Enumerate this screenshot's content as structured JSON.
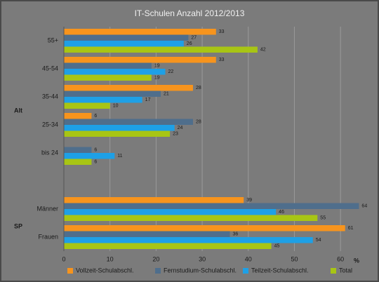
{
  "chart_data": {
    "type": "hbar",
    "title": "IT-Schulen Anzahl 2012/2013",
    "categories": [
      "55+",
      "45-54",
      "35-44",
      "25-34",
      "bis 24",
      null,
      "Männer",
      "Frauen"
    ],
    "group_labels": [
      "Alt",
      "SP"
    ],
    "series": [
      {
        "name": "Vollzeit-Schulabschl.",
        "color": "#f7941d",
        "values": [
          33,
          33,
          28,
          6,
          null,
          null,
          39,
          61
        ]
      },
      {
        "name": "Fernstudium-Schulabschl.",
        "color": "#4f6e8c",
        "values": [
          27,
          19,
          21,
          28,
          6,
          null,
          64,
          36
        ]
      },
      {
        "name": "Teilzeit-Schulabschl.",
        "color": "#1ea0e6",
        "values": [
          26,
          22,
          17,
          24,
          11,
          null,
          46,
          54
        ]
      },
      {
        "name": "Total",
        "color": "#a8c514",
        "values": [
          42,
          19,
          10,
          23,
          6,
          null,
          55,
          45
        ]
      }
    ],
    "xlim": [
      0,
      65
    ],
    "xticks": [
      0,
      10,
      20,
      30,
      40,
      50,
      60
    ],
    "x_unit": "%",
    "grid": true
  }
}
